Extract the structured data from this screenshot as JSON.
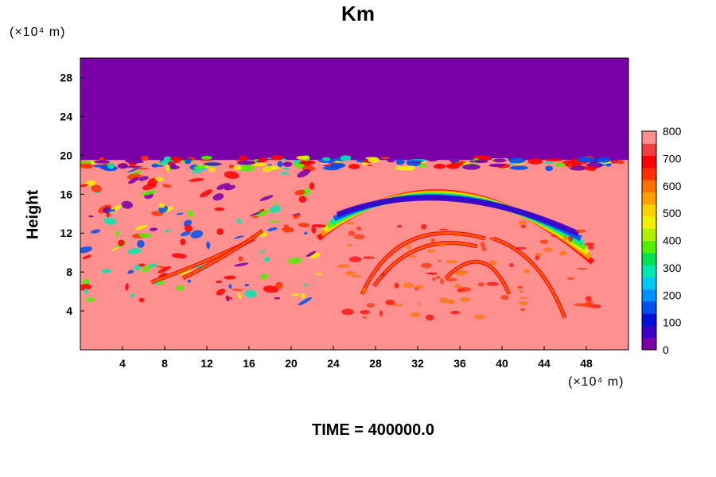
{
  "chart_data": {
    "type": "heatmap",
    "title": "Km",
    "ylabel": "Height",
    "xlabel": "",
    "x_unit": "(×10⁴ m)",
    "y_unit": "(×10⁴ m)",
    "footer": "TIME = 400000.0",
    "xlim": [
      0,
      52
    ],
    "ylim": [
      0,
      30
    ],
    "x_ticks": [
      4,
      8,
      12,
      16,
      20,
      24,
      28,
      32,
      36,
      40,
      44,
      48
    ],
    "y_ticks": [
      4,
      8,
      12,
      16,
      20,
      24,
      28
    ],
    "tropopause_height": 19.6,
    "colorbar": {
      "min": 0,
      "max": 800,
      "ticks": [
        0,
        100,
        200,
        300,
        400,
        500,
        600,
        700,
        800
      ],
      "colors": [
        "#7a00a8",
        "#3c00c8",
        "#0010d8",
        "#0050f0",
        "#0090ff",
        "#00c8f0",
        "#00e8b0",
        "#00e050",
        "#50f000",
        "#b0f000",
        "#f0f000",
        "#ffd000",
        "#ffa000",
        "#ff7000",
        "#ff3000",
        "#ff0000",
        "#f04040",
        "#ff9090"
      ]
    },
    "regions": {
      "upper_layer_value": 0,
      "background_value": 800
    }
  }
}
